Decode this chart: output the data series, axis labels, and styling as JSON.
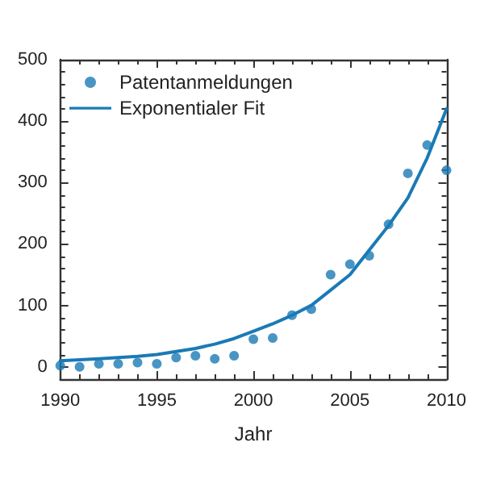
{
  "chart_data": {
    "type": "scatter",
    "xlabel": "Jahr",
    "xlim": [
      1990,
      2010
    ],
    "xticks": [
      1990,
      1995,
      2000,
      2005,
      2010
    ],
    "ylim": [
      -20,
      500
    ],
    "yticks": [
      0,
      100,
      200,
      300,
      400,
      500
    ],
    "grid": false,
    "legend": "top left",
    "series": [
      {
        "name": "Patentanmeldungen",
        "color": "#1a7ab5",
        "marker": "circle",
        "x": [
          1990,
          1991,
          1992,
          1993,
          1994,
          1995,
          1996,
          1997,
          1998,
          1999,
          2000,
          2001,
          2002,
          2003,
          2004,
          2005,
          2006,
          2007,
          2008,
          2009,
          2010
        ],
        "values": [
          2,
          0,
          5,
          5,
          7,
          5,
          15,
          18,
          13,
          18,
          45,
          47,
          84,
          94,
          150,
          167,
          181,
          232,
          315,
          361,
          320
        ]
      },
      {
        "name": "Exponentialer Fit",
        "type": "line",
        "color": "#1a7ab5",
        "marker": "none",
        "line_style": "solid",
        "x": [
          1990,
          1992,
          1994,
          1995,
          1996,
          1997,
          1998,
          1999,
          2000,
          2001,
          2002,
          2003,
          2004,
          2005,
          2006,
          2007,
          2008,
          2009,
          2010
        ],
        "values": [
          10,
          13,
          17,
          20,
          25,
          30,
          37,
          46,
          58,
          70,
          84,
          100,
          125,
          150,
          190,
          230,
          275,
          340,
          420
        ]
      }
    ]
  }
}
